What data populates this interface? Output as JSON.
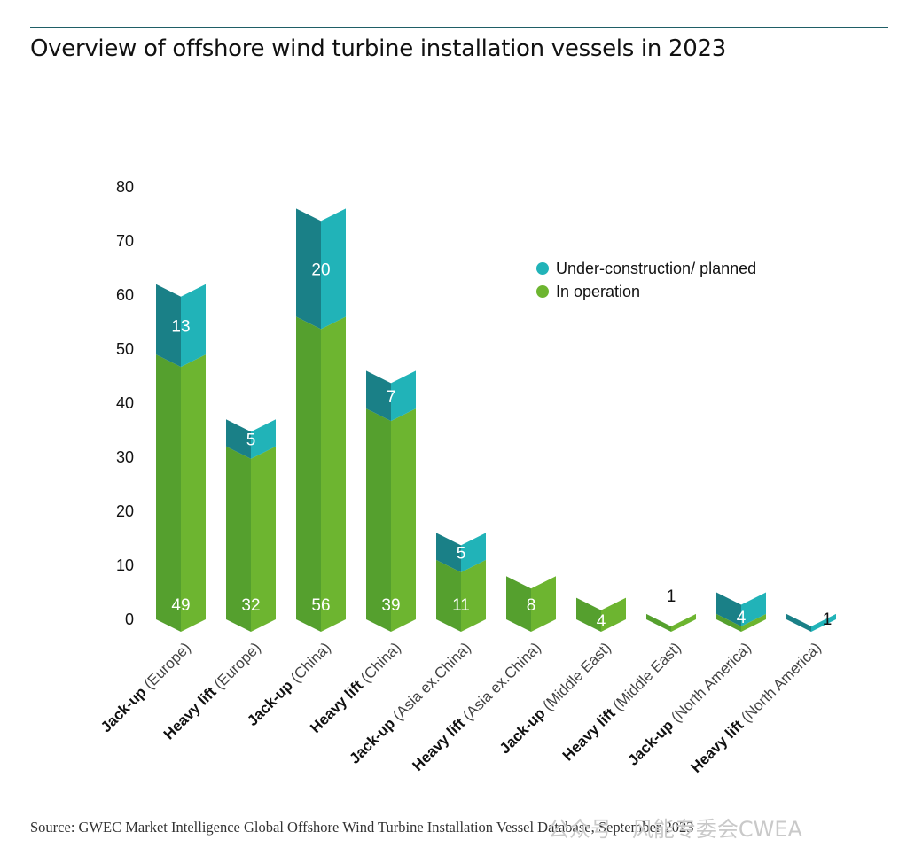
{
  "title": "Overview of offshore wind turbine installation vessels in 2023",
  "source": "Source: GWEC Market Intelligence Global Offshore Wind Turbine Installation Vessel Database, September 2023",
  "watermark": "公众号 · 风能专委会CWEA",
  "colors": {
    "operation_light": "#6db530",
    "operation_dark": "#55a02e",
    "construction_light": "#21b3b8",
    "construction_dark": "#1a8087"
  },
  "chart_data": {
    "type": "bar",
    "stacked": true,
    "categories": [
      {
        "bold": "Jack-up",
        "light": " (Europe)"
      },
      {
        "bold": "Heavy lift",
        "light": " (Europe)"
      },
      {
        "bold": "Jack-up",
        "light": " (China)"
      },
      {
        "bold": "Heavy lift",
        "light": " (China)"
      },
      {
        "bold": "Jack-up",
        "light": " (Asia ex.China)"
      },
      {
        "bold": "Heavy lift",
        "light": " (Asia ex.China)"
      },
      {
        "bold": "Jack-up",
        "light": " (Middle East)"
      },
      {
        "bold": "Heavy lift",
        "light": " (Middle East)"
      },
      {
        "bold": "Jack-up",
        "light": " (North America)"
      },
      {
        "bold": "Heavy lift",
        "light": " (North America)"
      }
    ],
    "series": [
      {
        "name": "In operation",
        "values": [
          49,
          32,
          56,
          39,
          11,
          8,
          4,
          1,
          1,
          0
        ],
        "labels": [
          "49",
          "32",
          "56",
          "39",
          "11",
          "8",
          "4",
          "1",
          "",
          ""
        ]
      },
      {
        "name": "Under-construction/ planned",
        "values": [
          13,
          5,
          20,
          7,
          5,
          0,
          0,
          0,
          4,
          1
        ],
        "labels": [
          "13",
          "5",
          "20",
          "7",
          "5",
          "",
          "",
          "",
          "4",
          "1"
        ]
      }
    ],
    "ylim": [
      0,
      80
    ],
    "yticks": [
      0,
      10,
      20,
      30,
      40,
      50,
      60,
      70,
      80
    ],
    "legend_position": "top-right",
    "grid": false
  }
}
